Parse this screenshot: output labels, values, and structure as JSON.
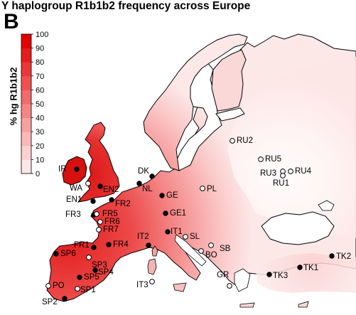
{
  "header": {
    "title": "Y haplogroup R1b1b2 frequency across Europe",
    "panel": "B"
  },
  "legend": {
    "label": "% hg R1b1b2",
    "ticks": [
      "0",
      "10",
      "20",
      "30",
      "40",
      "50",
      "60",
      "70",
      "80",
      "90",
      "100"
    ],
    "colors": [
      "#ffffff",
      "#fde6e6",
      "#fcd0d0",
      "#fab8b8",
      "#f8a0a0",
      "#f58585",
      "#f26a6a",
      "#ef5050",
      "#ec3636",
      "#e81c1c",
      "#e40000"
    ]
  },
  "colors": {
    "sea": "#ffffff",
    "coast": "#000000",
    "sample_closed": "#000000",
    "sample_open": "#ffffff"
  },
  "samples": [
    {
      "id": "IR",
      "filled": true
    },
    {
      "id": "WA",
      "filled": false
    },
    {
      "id": "EN2",
      "filled": true
    },
    {
      "id": "EN1",
      "filled": true
    },
    {
      "id": "DK",
      "filled": true
    },
    {
      "id": "NL",
      "filled": true
    },
    {
      "id": "GE",
      "filled": true
    },
    {
      "id": "PL",
      "filled": false
    },
    {
      "id": "FR2",
      "filled": true
    },
    {
      "id": "FR3",
      "filled": true
    },
    {
      "id": "FR5",
      "filled": false
    },
    {
      "id": "FR6",
      "filled": false
    },
    {
      "id": "FR7",
      "filled": false
    },
    {
      "id": "GE1",
      "filled": true
    },
    {
      "id": "FR1",
      "filled": true
    },
    {
      "id": "FR4",
      "filled": true
    },
    {
      "id": "IT2",
      "filled": true
    },
    {
      "id": "IT1",
      "filled": true
    },
    {
      "id": "SL",
      "filled": false
    },
    {
      "id": "BO",
      "filled": false
    },
    {
      "id": "SB",
      "filled": false
    },
    {
      "id": "SP6",
      "filled": true
    },
    {
      "id": "SP3",
      "filled": false
    },
    {
      "id": "SP5",
      "filled": true
    },
    {
      "id": "SP4",
      "filled": true
    },
    {
      "id": "PO",
      "filled": false
    },
    {
      "id": "SP1",
      "filled": false
    },
    {
      "id": "SP2",
      "filled": true
    },
    {
      "id": "IT3",
      "filled": false
    },
    {
      "id": "GR",
      "filled": false
    },
    {
      "id": "TK3",
      "filled": true
    },
    {
      "id": "TK1",
      "filled": true
    },
    {
      "id": "TK2",
      "filled": true
    },
    {
      "id": "RU2",
      "filled": false
    },
    {
      "id": "RU5",
      "filled": false
    },
    {
      "id": "RU3",
      "filled": false
    },
    {
      "id": "RU4",
      "filled": false
    },
    {
      "id": "RU1",
      "filled": false
    }
  ]
}
